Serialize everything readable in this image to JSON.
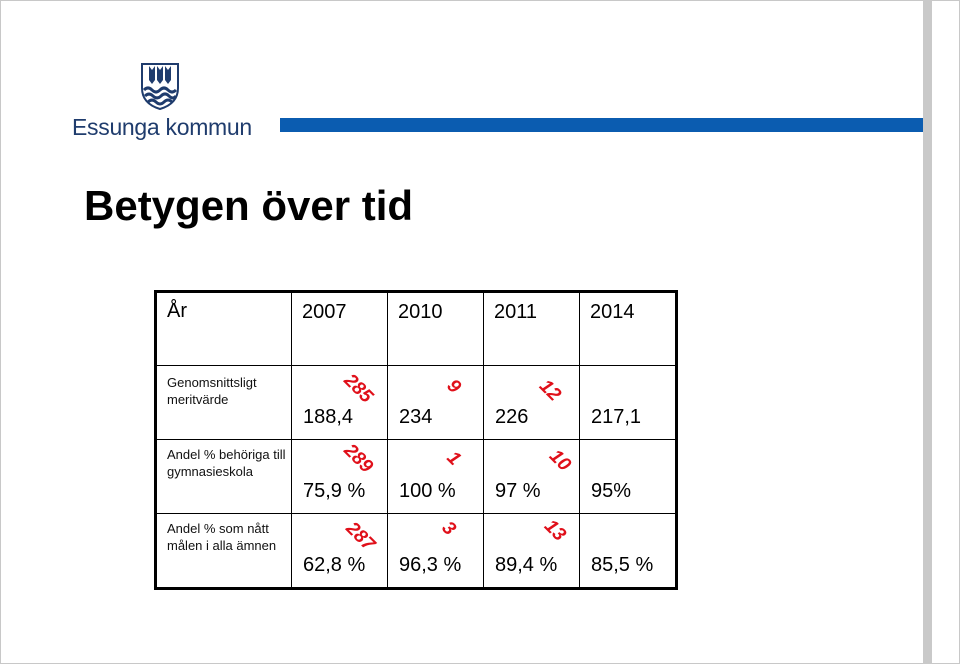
{
  "header": {
    "org_name": "Essunga kommun",
    "logo_icon": "coat-of-arms-icon",
    "stripe_color": "#0b5cb0",
    "logo_color": "#1f3c6d"
  },
  "title": "Betygen över tid",
  "table": {
    "corner_label": "År",
    "years": [
      "2007",
      "2010",
      "2011",
      "2014"
    ],
    "rows": [
      {
        "label": "Genomsnittsligt meritvärde",
        "values": [
          "188,4",
          "234",
          "226",
          "217,1"
        ],
        "ranks": [
          "285",
          "9",
          "12",
          ""
        ]
      },
      {
        "label": "Andel % behöriga till gymnasieskola",
        "values": [
          "75,9 %",
          "100 %",
          "97 %",
          "95%"
        ],
        "ranks": [
          "289",
          "1",
          "10",
          ""
        ]
      },
      {
        "label": "Andel % som nått målen i alla ämnen",
        "values": [
          "62,8 %",
          "96,3 %",
          "89,4 %",
          "85,5 %"
        ],
        "ranks": [
          "287",
          "3",
          "13",
          ""
        ]
      }
    ],
    "rank_color": "#e0101a"
  }
}
